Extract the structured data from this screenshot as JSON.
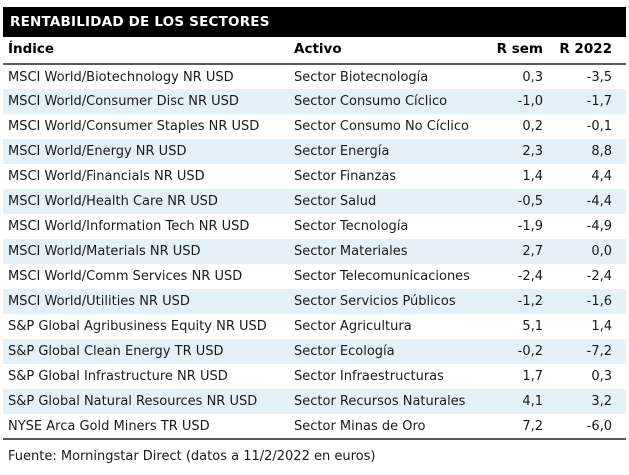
{
  "title_bar": {
    "text": "RENTABILIDAD DE LOS SECTORES",
    "bg_color": "#000000",
    "text_color": "#ffffff"
  },
  "table": {
    "columns": {
      "indice": "Índice",
      "activo": "Activo",
      "r_sem": "R sem",
      "r_2022": "R 2022"
    },
    "rows": [
      {
        "indice": "MSCI World/Biotechnology NR USD",
        "activo": "Sector Biotecnología",
        "r_sem": "0,3",
        "r_2022": "-3,5"
      },
      {
        "indice": "MSCI World/Consumer Disc NR USD",
        "activo": "Sector Consumo Cíclico",
        "r_sem": "-1,0",
        "r_2022": "-1,7"
      },
      {
        "indice": "MSCI World/Consumer Staples NR USD",
        "activo": "Sector Consumo No Cíclico",
        "r_sem": "0,2",
        "r_2022": "-0,1"
      },
      {
        "indice": "MSCI World/Energy NR USD",
        "activo": "Sector Energía",
        "r_sem": "2,3",
        "r_2022": "8,8"
      },
      {
        "indice": "MSCI World/Financials NR USD",
        "activo": "Sector Finanzas",
        "r_sem": "1,4",
        "r_2022": "4,4"
      },
      {
        "indice": "MSCI World/Health Care NR USD",
        "activo": "Sector Salud",
        "r_sem": "-0,5",
        "r_2022": "-4,4"
      },
      {
        "indice": "MSCI World/Information Tech NR USD",
        "activo": "Sector Tecnología",
        "r_sem": "-1,9",
        "r_2022": "-4,9"
      },
      {
        "indice": "MSCI World/Materials NR USD",
        "activo": "Sector Materiales",
        "r_sem": "2,7",
        "r_2022": "0,0"
      },
      {
        "indice": "MSCI World/Comm Services NR USD",
        "activo": "Sector Telecomunicaciones",
        "r_sem": "-2,4",
        "r_2022": "-2,4"
      },
      {
        "indice": "MSCI World/Utilities NR USD",
        "activo": "Sector Servicios Públicos",
        "r_sem": "-1,2",
        "r_2022": "-1,6"
      },
      {
        "indice": "S&P Global Agribusiness Equity NR USD",
        "activo": "Sector Agricultura",
        "r_sem": "5,1",
        "r_2022": "1,4"
      },
      {
        "indice": "S&P Global Clean Energy TR USD",
        "activo": "Sector Ecología",
        "r_sem": "-0,2",
        "r_2022": "-7,2"
      },
      {
        "indice": "S&P Global Infrastructure NR USD",
        "activo": "Sector Infraestructuras",
        "r_sem": "1,7",
        "r_2022": "0,3"
      },
      {
        "indice": "S&P Global Natural Resources NR USD",
        "activo": "Sector Recursos Naturales",
        "r_sem": "4,1",
        "r_2022": "3,2"
      },
      {
        "indice": "NYSE Arca Gold Miners TR USD",
        "activo": "Sector Minas de Oro",
        "r_sem": "7,2",
        "r_2022": "-6,0"
      }
    ]
  },
  "footer": {
    "source": "Fuente: Morningstar Direct (datos a 11/2/2022 en euros)"
  },
  "colors": {
    "stripe_row": "#e4f1f8",
    "header_rule": "#58595b",
    "title_bg": "#000000",
    "title_text": "#ffffff"
  },
  "chart_data": {
    "type": "table",
    "title": "RENTABILIDAD DE LOS SECTORES",
    "columns": [
      "Índice",
      "Activo",
      "R sem",
      "R 2022"
    ],
    "rows": [
      [
        "MSCI World/Biotechnology NR USD",
        "Sector Biotecnología",
        0.3,
        -3.5
      ],
      [
        "MSCI World/Consumer Disc NR USD",
        "Sector Consumo Cíclico",
        -1.0,
        -1.7
      ],
      [
        "MSCI World/Consumer Staples NR USD",
        "Sector Consumo No Cíclico",
        0.2,
        -0.1
      ],
      [
        "MSCI World/Energy NR USD",
        "Sector Energía",
        2.3,
        8.8
      ],
      [
        "MSCI World/Financials NR USD",
        "Sector Finanzas",
        1.4,
        4.4
      ],
      [
        "MSCI World/Health Care NR USD",
        "Sector Salud",
        -0.5,
        -4.4
      ],
      [
        "MSCI World/Information Tech NR USD",
        "Sector Tecnología",
        -1.9,
        -4.9
      ],
      [
        "MSCI World/Materials NR USD",
        "Sector Materiales",
        2.7,
        0.0
      ],
      [
        "MSCI World/Comm Services NR USD",
        "Sector Telecomunicaciones",
        -2.4,
        -2.4
      ],
      [
        "MSCI World/Utilities NR USD",
        "Sector Servicios Públicos",
        -1.2,
        -1.6
      ],
      [
        "S&P Global Agribusiness Equity NR USD",
        "Sector Agricultura",
        5.1,
        1.4
      ],
      [
        "S&P Global Clean Energy TR USD",
        "Sector Ecología",
        -0.2,
        -7.2
      ],
      [
        "S&P Global Infrastructure NR USD",
        "Sector Infraestructuras",
        1.7,
        0.3
      ],
      [
        "S&P Global Natural Resources NR USD",
        "Sector Recursos Naturales",
        4.1,
        3.2
      ],
      [
        "NYSE Arca Gold Miners TR USD",
        "Sector Minas de Oro",
        7.2,
        -6.0
      ]
    ],
    "decimal_separator": ",",
    "source": "Fuente: Morningstar Direct (datos a 11/2/2022 en euros)",
    "notes": "Alternating white / pale blue row striping; values shown with comma decimals in euros"
  }
}
